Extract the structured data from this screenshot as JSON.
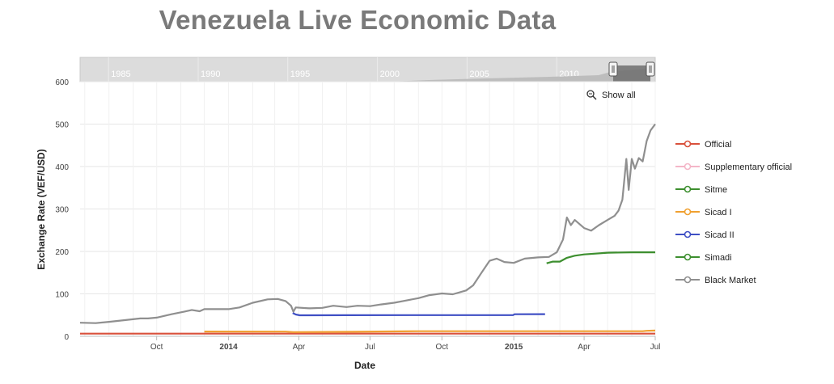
{
  "title": "Venezuela Live Economic Data",
  "show_all_label": "Show all",
  "chart_data": {
    "type": "line",
    "xlabel": "Date",
    "ylabel": "Exchange Rate (VEF/USD)",
    "xlim": [
      "2013-06-25",
      "2015-07-01"
    ],
    "ylim": [
      0,
      600
    ],
    "y_ticks": [
      0,
      100,
      200,
      300,
      400,
      500,
      600
    ],
    "x_ticks": [
      {
        "date": "2013-10-01",
        "label": "Oct",
        "bold": false
      },
      {
        "date": "2014-01-01",
        "label": "2014",
        "bold": true
      },
      {
        "date": "2014-04-01",
        "label": "Apr",
        "bold": false
      },
      {
        "date": "2014-07-01",
        "label": "Jul",
        "bold": false
      },
      {
        "date": "2014-10-01",
        "label": "Oct",
        "bold": false
      },
      {
        "date": "2015-01-01",
        "label": "2015",
        "bold": true
      },
      {
        "date": "2015-04-01",
        "label": "Apr",
        "bold": false
      },
      {
        "date": "2015-07-01",
        "label": "Jul",
        "bold": false
      }
    ],
    "grid": true,
    "legend_position": "right",
    "navigator": {
      "labels": [
        "1985",
        "1990",
        "1995",
        "2000",
        "2005",
        "2010"
      ],
      "range": [
        "1983-06-01",
        "2015-07-01"
      ],
      "selected": [
        "2013-06-25",
        "2015-07-01"
      ]
    },
    "series": [
      {
        "name": "Official",
        "color": "#d9513c",
        "points": [
          [
            "2013-06-25",
            6.3
          ],
          [
            "2015-07-01",
            6.3
          ]
        ]
      },
      {
        "name": "Supplementary official",
        "color": "#f4b6c8",
        "points": []
      },
      {
        "name": "Sitme",
        "color": "#3d8f2f",
        "points": []
      },
      {
        "name": "Sicad I",
        "color": "#f0a030",
        "points": [
          [
            "2013-12-01",
            11.3
          ],
          [
            "2014-03-15",
            11.0
          ],
          [
            "2014-03-25",
            10.0
          ],
          [
            "2014-06-10",
            10.6
          ],
          [
            "2014-09-01",
            12.0
          ],
          [
            "2015-01-01",
            12.0
          ],
          [
            "2015-02-10",
            12.0
          ],
          [
            "2015-06-15",
            12.0
          ],
          [
            "2015-06-20",
            13.0
          ],
          [
            "2015-07-01",
            13.5
          ]
        ]
      },
      {
        "name": "Sicad II",
        "color": "#3f4fc4",
        "points": [
          [
            "2014-03-24",
            55
          ],
          [
            "2014-03-28",
            51.5
          ],
          [
            "2014-04-02",
            49.5
          ],
          [
            "2014-06-01",
            49.8
          ],
          [
            "2014-10-01",
            50.0
          ],
          [
            "2014-12-31",
            50.0
          ],
          [
            "2015-01-02",
            52.0
          ],
          [
            "2015-02-10",
            52.1
          ]
        ]
      },
      {
        "name": "Simadi",
        "color": "#3d8f2f",
        "points": [
          [
            "2015-02-12",
            172
          ],
          [
            "2015-02-20",
            176
          ],
          [
            "2015-03-01",
            176
          ],
          [
            "2015-03-10",
            185
          ],
          [
            "2015-03-20",
            190
          ],
          [
            "2015-04-01",
            193
          ],
          [
            "2015-05-01",
            197
          ],
          [
            "2015-06-01",
            198
          ],
          [
            "2015-07-01",
            198
          ]
        ]
      },
      {
        "name": "Black Market",
        "color": "#8f8f8f",
        "points": [
          [
            "2013-06-25",
            32
          ],
          [
            "2013-07-15",
            31
          ],
          [
            "2013-08-01",
            34
          ],
          [
            "2013-08-20",
            38
          ],
          [
            "2013-09-10",
            42
          ],
          [
            "2013-09-20",
            42
          ],
          [
            "2013-10-01",
            44
          ],
          [
            "2013-10-20",
            52
          ],
          [
            "2013-11-05",
            58
          ],
          [
            "2013-11-15",
            62
          ],
          [
            "2013-11-25",
            59
          ],
          [
            "2013-12-01",
            64
          ],
          [
            "2014-01-01",
            64
          ],
          [
            "2014-01-15",
            68
          ],
          [
            "2014-02-01",
            79
          ],
          [
            "2014-02-20",
            87
          ],
          [
            "2014-03-05",
            88
          ],
          [
            "2014-03-15",
            83
          ],
          [
            "2014-03-22",
            72
          ],
          [
            "2014-03-25",
            58
          ],
          [
            "2014-03-28",
            68
          ],
          [
            "2014-04-15",
            66
          ],
          [
            "2014-05-01",
            67
          ],
          [
            "2014-05-15",
            72
          ],
          [
            "2014-06-01",
            69
          ],
          [
            "2014-06-15",
            72
          ],
          [
            "2014-07-01",
            71
          ],
          [
            "2014-07-15",
            75
          ],
          [
            "2014-08-01",
            79
          ],
          [
            "2014-08-15",
            84
          ],
          [
            "2014-09-01",
            90
          ],
          [
            "2014-09-15",
            97
          ],
          [
            "2014-10-01",
            101
          ],
          [
            "2014-10-15",
            99
          ],
          [
            "2014-11-01",
            108
          ],
          [
            "2014-11-10",
            120
          ],
          [
            "2014-11-20",
            148
          ],
          [
            "2014-12-01",
            178
          ],
          [
            "2014-12-10",
            183
          ],
          [
            "2014-12-20",
            175
          ],
          [
            "2015-01-01",
            173
          ],
          [
            "2015-01-15",
            183
          ],
          [
            "2015-02-01",
            186
          ],
          [
            "2015-02-15",
            187
          ],
          [
            "2015-02-25",
            198
          ],
          [
            "2015-03-05",
            228
          ],
          [
            "2015-03-10",
            280
          ],
          [
            "2015-03-15",
            262
          ],
          [
            "2015-03-20",
            274
          ],
          [
            "2015-04-01",
            255
          ],
          [
            "2015-04-10",
            249
          ],
          [
            "2015-04-20",
            262
          ],
          [
            "2015-05-01",
            274
          ],
          [
            "2015-05-10",
            284
          ],
          [
            "2015-05-15",
            296
          ],
          [
            "2015-05-20",
            322
          ],
          [
            "2015-05-25",
            418
          ],
          [
            "2015-05-28",
            345
          ],
          [
            "2015-06-01",
            418
          ],
          [
            "2015-06-05",
            395
          ],
          [
            "2015-06-10",
            420
          ],
          [
            "2015-06-15",
            412
          ],
          [
            "2015-06-20",
            460
          ],
          [
            "2015-06-25",
            485
          ],
          [
            "2015-07-01",
            500
          ]
        ]
      }
    ]
  }
}
